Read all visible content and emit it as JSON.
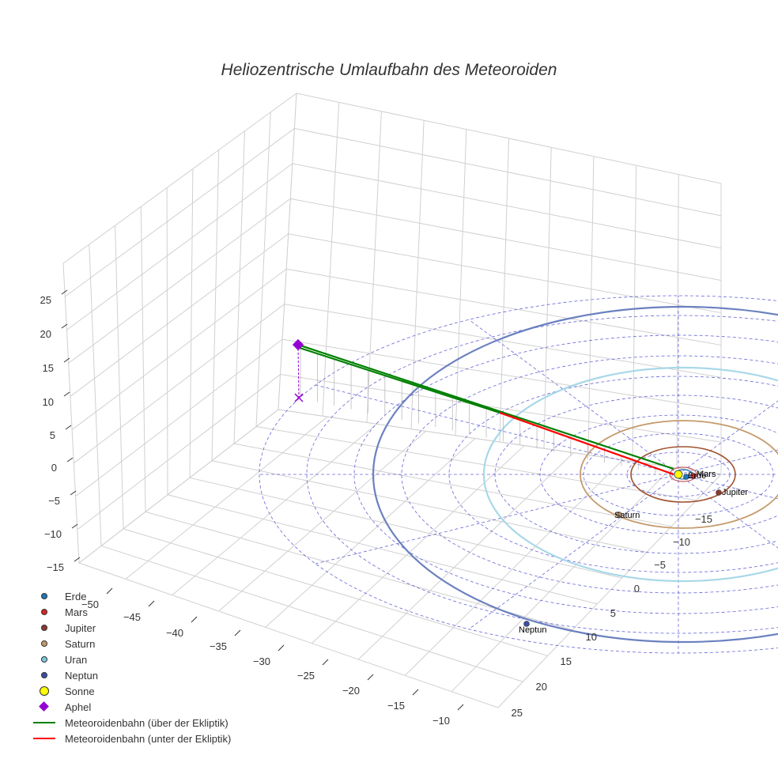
{
  "chart_data": {
    "type": "scatter",
    "title": "Heliozentrische Umlaufbahn des Meteoroiden",
    "z_ticks": [
      "25",
      "20",
      "15",
      "10",
      "5",
      "0",
      "−5",
      "−10",
      "−15"
    ],
    "x_ticks": [
      "−50",
      "−45",
      "−40",
      "−35",
      "−30",
      "−25",
      "−20",
      "−15",
      "−10"
    ],
    "y_ticks": [
      "−15",
      "−10",
      "−5",
      "0",
      "5",
      "10",
      "15",
      "20",
      "25"
    ],
    "planet_labels": {
      "erde": "Erde",
      "mars": "Mars",
      "jupiter": "Jupiter",
      "saturn": "Saturn",
      "neptun": "Neptun"
    },
    "legend": [
      {
        "label": "Erde",
        "color": "#1f77b4",
        "symbol": "dot"
      },
      {
        "label": "Mars",
        "color": "#d62728",
        "symbol": "dot"
      },
      {
        "label": "Jupiter",
        "color": "#8c3a2e",
        "symbol": "dot"
      },
      {
        "label": "Saturn",
        "color": "#c49a6c",
        "symbol": "dot"
      },
      {
        "label": "Uran",
        "color": "#7fc8e0",
        "symbol": "dot"
      },
      {
        "label": "Neptun",
        "color": "#3a4fa0",
        "symbol": "dot"
      },
      {
        "label": "Sonne",
        "color": "#ffff00",
        "symbol": "sun"
      },
      {
        "label": "Aphel",
        "color": "#9400d3",
        "symbol": "diamond"
      },
      {
        "label": "Meteoroidenbahn (über der Ekliptik)",
        "color": "#008000",
        "symbol": "line"
      },
      {
        "label": "Meteoroidenbahn (unter der Ekliptik)",
        "color": "#ff0000",
        "symbol": "line"
      }
    ],
    "colors": {
      "grid": "#d0d0d0",
      "ecliptic_grid": "#3333cc",
      "neptune_orbit": "#6b80bf",
      "uranus_orbit": "#a8d8e8",
      "saturn_orbit": "#c49a6c",
      "jupiter_orbit": "#a0522d",
      "mars_orbit": "#c85a5a",
      "earth_orbit": "#1f77b4",
      "aphelion": "#9400d3",
      "above": "#008000",
      "below": "#ff0000"
    }
  }
}
